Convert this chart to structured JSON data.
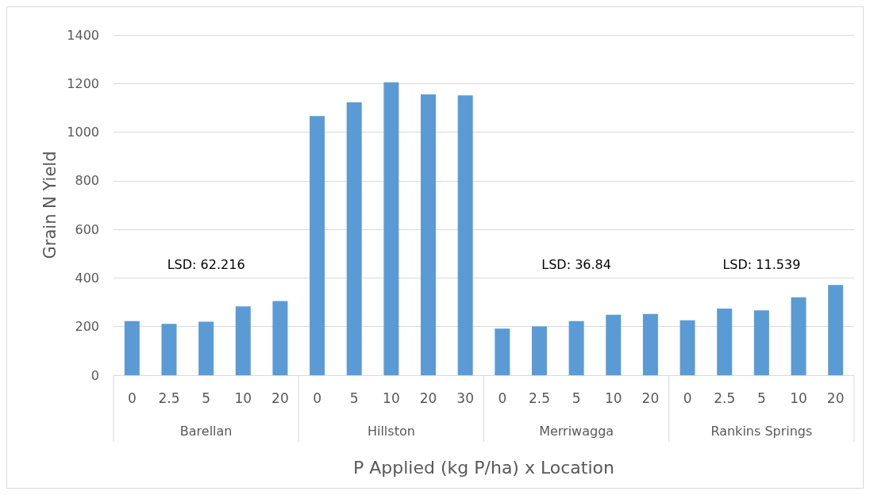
{
  "chart_data": {
    "type": "bar",
    "xlabel": "P Applied (kg P/ha) x Location",
    "ylabel": "Grain N Yield",
    "categories": [
      "0",
      "2.5",
      "5",
      "10",
      "20",
      "0",
      "5",
      "10",
      "20",
      "30",
      "0",
      "2.5",
      "5",
      "10",
      "20",
      "0",
      "2.5",
      "5",
      "10",
      "20"
    ],
    "values": [
      223,
      211,
      220,
      283,
      305,
      1066,
      1123,
      1205,
      1155,
      1151,
      192,
      201,
      223,
      249,
      252,
      226,
      274,
      267,
      321,
      371
    ],
    "color": "#5b9bd5",
    "ylim": [
      0,
      1400
    ],
    "yticks": [
      0,
      200,
      400,
      600,
      800,
      1000,
      1200,
      1400
    ],
    "grid": "y",
    "annotations": [
      "Barellan",
      "Hillston",
      "Merriwagga",
      "Rankins Springs",
      "LSD: 62.216",
      "LSD: 36.84",
      "LSD: 11.539"
    ]
  }
}
